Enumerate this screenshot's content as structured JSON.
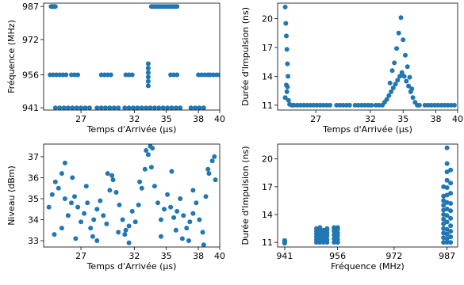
{
  "chart_data": [
    {
      "type": "scatter",
      "xlabel": "Temps d'Arrivée (µs)",
      "ylabel": "Fréquence (MHz)",
      "xlim": [
        23.5,
        40
      ],
      "ylim": [
        940,
        988.5
      ],
      "xticks": [
        27,
        32,
        35,
        38,
        40
      ],
      "yticks": [
        941,
        956,
        972,
        987
      ],
      "marker_color": "#1f77b4",
      "series": [
        {
          "x": [
            24.2,
            24.3,
            24.4,
            24.5,
            24.6,
            33.6,
            33.8,
            34.0,
            34.2,
            34.4,
            34.6,
            34.8,
            35.0,
            35.2,
            35.4,
            35.6,
            35.8,
            36.0
          ],
          "y": [
            987,
            987,
            987,
            987,
            987,
            987,
            987,
            987,
            987,
            987,
            987,
            987,
            987,
            987,
            987,
            987,
            987,
            987
          ]
        },
        {
          "x": [
            24.1,
            24.4,
            24.7,
            25.0,
            25.3,
            25.6,
            26.1,
            26.4,
            26.7,
            28.9,
            29.2,
            29.5,
            29.8,
            31.2,
            31.5,
            31.8,
            33.3,
            33.3,
            33.3,
            33.3,
            33.3,
            33.3,
            35.4,
            35.7,
            36.0,
            38.0,
            38.3,
            38.6,
            38.9,
            39.1,
            39.4,
            39.7,
            40.0
          ],
          "y": [
            956,
            956,
            956,
            956,
            956,
            956,
            956,
            956,
            956,
            956,
            956,
            956,
            956,
            956,
            956,
            956,
            951,
            953,
            955,
            957,
            959,
            961,
            956,
            956,
            956,
            956,
            956,
            956,
            956,
            956,
            956,
            956,
            956
          ]
        },
        {
          "x": [
            24.6,
            25.0,
            25.4,
            25.8,
            26.2,
            26.6,
            27.0,
            27.4,
            27.8,
            28.5,
            28.9,
            29.3,
            29.7,
            30.1,
            30.5,
            31.1,
            31.5,
            31.9,
            32.3,
            32.7,
            33.1,
            33.5,
            33.9,
            34.3,
            34.7,
            35.1,
            35.5,
            35.9,
            36.3,
            37.3,
            37.7,
            38.1,
            38.5
          ],
          "y": [
            941,
            941,
            941,
            941,
            941,
            941,
            941,
            941,
            941,
            941,
            941,
            941,
            941,
            941,
            941,
            941,
            941,
            941,
            941,
            941,
            941,
            941,
            941,
            941,
            941,
            941,
            941,
            941,
            941,
            941,
            941,
            941,
            941
          ]
        }
      ]
    },
    {
      "type": "scatter",
      "xlabel": "Temps d'Arrivée (µs)",
      "ylabel": "Durée d'Impulsion (ns)",
      "xlim": [
        23.5,
        40
      ],
      "ylim": [
        10.5,
        21.6
      ],
      "xticks": [
        27,
        32,
        35,
        38,
        40
      ],
      "yticks": [
        11,
        14,
        17,
        20
      ],
      "marker_color": "#1f77b4",
      "series": [
        {
          "x": [
            24.2,
            24.25,
            24.3,
            24.35,
            24.4,
            24.45,
            24.3,
            24.35,
            24.2,
            24.4,
            24.5,
            24.6,
            24.8,
            25.0,
            25.3,
            25.6,
            25.9,
            26.2,
            26.5,
            26.8,
            27.1,
            27.4,
            27.7,
            28.0,
            28.3,
            28.9,
            29.2,
            29.5,
            29.8,
            30.1,
            30.6,
            30.9,
            31.2,
            31.5,
            31.8,
            32.1,
            32.5,
            32.8,
            33.1,
            33.3,
            33.5,
            33.7,
            33.9,
            34.1,
            34.3,
            34.5,
            34.7,
            34.9,
            35.1,
            35.3,
            35.5,
            35.7,
            35.9,
            36.1,
            36.3,
            36.5,
            37.0,
            37.3,
            37.6,
            37.9,
            38.2,
            38.5,
            38.8,
            39.1,
            39.4,
            39.7,
            34.8,
            34.6,
            35.0,
            34.4,
            35.2,
            34.2,
            35.4,
            34.0,
            35.6,
            33.8,
            35.8
          ],
          "y": [
            21.2,
            19.5,
            18.2,
            16.8,
            15.3,
            14.0,
            13.1,
            12.4,
            11.8,
            12.9,
            11.5,
            11.1,
            11.0,
            11.0,
            11.0,
            11.0,
            11.0,
            11.0,
            11.0,
            11.0,
            11.0,
            11.0,
            11.0,
            11.0,
            11.0,
            11.0,
            11.0,
            11.0,
            11.0,
            11.0,
            11.0,
            11.0,
            11.0,
            11.0,
            11.0,
            11.0,
            11.0,
            11.0,
            11.0,
            11.3,
            11.6,
            12.0,
            12.4,
            12.8,
            13.2,
            13.6,
            14.0,
            14.4,
            14.0,
            13.5,
            13.0,
            12.4,
            11.8,
            11.3,
            11.0,
            11.0,
            11.0,
            11.0,
            11.0,
            11.0,
            11.0,
            11.0,
            11.0,
            11.0,
            11.0,
            11.0,
            20.1,
            18.5,
            17.8,
            16.9,
            16.2,
            15.4,
            15.0,
            14.6,
            13.9,
            13.3,
            12.7
          ]
        }
      ]
    },
    {
      "type": "scatter",
      "xlabel": "Temps d'Arrivée (µs)",
      "ylabel": "Niveau (dBm)",
      "xlim": [
        23.5,
        40
      ],
      "ylim": [
        32.7,
        37.6
      ],
      "xticks": [
        27,
        32,
        35,
        38,
        40
      ],
      "yticks": [
        33,
        34,
        35,
        36,
        37
      ],
      "marker_color": "#1f77b4",
      "series": [
        {
          "x": [
            24.0,
            24.3,
            24.6,
            24.9,
            25.2,
            25.5,
            25.8,
            26.1,
            26.4,
            26.7,
            27.0,
            27.3,
            27.6,
            27.9,
            28.2,
            28.5,
            28.8,
            29.1,
            29.4,
            29.7,
            30.0,
            30.3,
            30.6,
            30.9,
            31.2,
            31.5,
            31.8,
            32.1,
            32.4,
            32.7,
            33.0,
            33.3,
            33.6,
            33.9,
            34.2,
            34.5,
            34.8,
            35.1,
            35.4,
            35.7,
            36.0,
            36.3,
            36.6,
            36.9,
            37.2,
            37.5,
            37.8,
            38.1,
            38.4,
            38.7,
            39.0,
            39.3,
            39.6
          ],
          "y": [
            34.6,
            35.2,
            35.8,
            35.5,
            36.2,
            35.0,
            34.2,
            34.8,
            35.1,
            34.6,
            33.9,
            34.3,
            34.8,
            33.6,
            34.0,
            34.5,
            34.9,
            34.2,
            33.8,
            35.4,
            35.9,
            35.3,
            34.7,
            34.0,
            33.5,
            33.7,
            34.4,
            33.9,
            34.7,
            35.5,
            36.4,
            37.1,
            36.5,
            35.6,
            34.8,
            34.0,
            34.5,
            35.2,
            34.6,
            34.1,
            34.4,
            35.0,
            34.2,
            33.6,
            33.9,
            34.3,
            34.8,
            34.0,
            33.4,
            35.1,
            36.2,
            36.8,
            35.9
          ]
        },
        {
          "x": [
            24.5,
            25.5,
            26.5,
            27.5,
            28.5,
            29.5,
            30.5,
            31.5,
            32.5,
            33.5,
            34.5,
            35.5,
            36.5,
            37.5,
            38.5,
            39.5,
            25.2,
            26.2,
            28.1,
            29.9,
            31.1,
            33.1,
            33.7,
            35.9,
            37.1,
            38.9
          ],
          "y": [
            33.3,
            36.7,
            33.1,
            35.6,
            33.0,
            36.2,
            33.4,
            32.9,
            35.8,
            37.5,
            33.2,
            36.3,
            33.1,
            35.4,
            32.8,
            37.0,
            33.6,
            36.0,
            33.2,
            36.1,
            33.3,
            37.3,
            37.4,
            33.5,
            33.0,
            36.4
          ]
        }
      ]
    },
    {
      "type": "scatter",
      "xlabel": "Fréquence (MHz)",
      "ylabel": "Durée d'Impulsion (ns)",
      "xlim": [
        939,
        990
      ],
      "ylim": [
        10.5,
        21.6
      ],
      "xticks": [
        941,
        956,
        972,
        987
      ],
      "yticks": [
        11,
        14,
        17,
        20
      ],
      "marker_color": "#1f77b4",
      "series": [
        {
          "x": [
            941,
            941,
            941,
            941
          ],
          "y": [
            11.0,
            11.1,
            11.2,
            10.9
          ]
        },
        {
          "x": [
            950,
            950,
            950,
            950,
            950,
            950,
            951,
            951,
            951,
            951,
            951,
            951,
            952,
            952,
            952,
            952,
            952,
            952,
            953,
            953,
            953,
            953,
            953,
            953
          ],
          "y": [
            11.0,
            11.3,
            11.6,
            11.9,
            12.2,
            12.5,
            11.0,
            11.4,
            11.8,
            12.1,
            12.4,
            12.6,
            11.0,
            11.2,
            11.5,
            11.8,
            12.0,
            12.3,
            11.0,
            11.3,
            11.7,
            12.0,
            12.3,
            12.5
          ]
        },
        {
          "x": [
            955,
            955,
            955,
            955,
            955,
            955,
            956,
            956,
            956,
            956,
            956,
            956
          ],
          "y": [
            11.0,
            11.4,
            11.8,
            12.2,
            12.5,
            12.6,
            11.0,
            11.3,
            11.7,
            12.0,
            12.4,
            12.6
          ]
        },
        {
          "x": [
            986,
            986,
            986,
            986,
            986,
            986,
            986,
            986,
            986,
            986,
            986,
            986,
            987,
            987,
            987,
            987,
            987,
            987,
            987,
            987,
            987,
            987,
            987,
            987,
            987,
            987,
            988,
            988,
            988,
            988,
            988,
            988,
            988,
            988,
            988,
            988
          ],
          "y": [
            11.0,
            11.5,
            12.0,
            12.5,
            13.0,
            13.5,
            14.0,
            14.5,
            15.0,
            15.5,
            16.0,
            17.0,
            11.0,
            11.4,
            11.9,
            12.4,
            13.2,
            13.9,
            14.6,
            15.3,
            16.1,
            16.9,
            17.7,
            18.6,
            19.5,
            21.2,
            11.0,
            11.6,
            12.2,
            12.8,
            13.6,
            14.4,
            15.2,
            16.3,
            17.4,
            18.8
          ]
        }
      ]
    }
  ]
}
